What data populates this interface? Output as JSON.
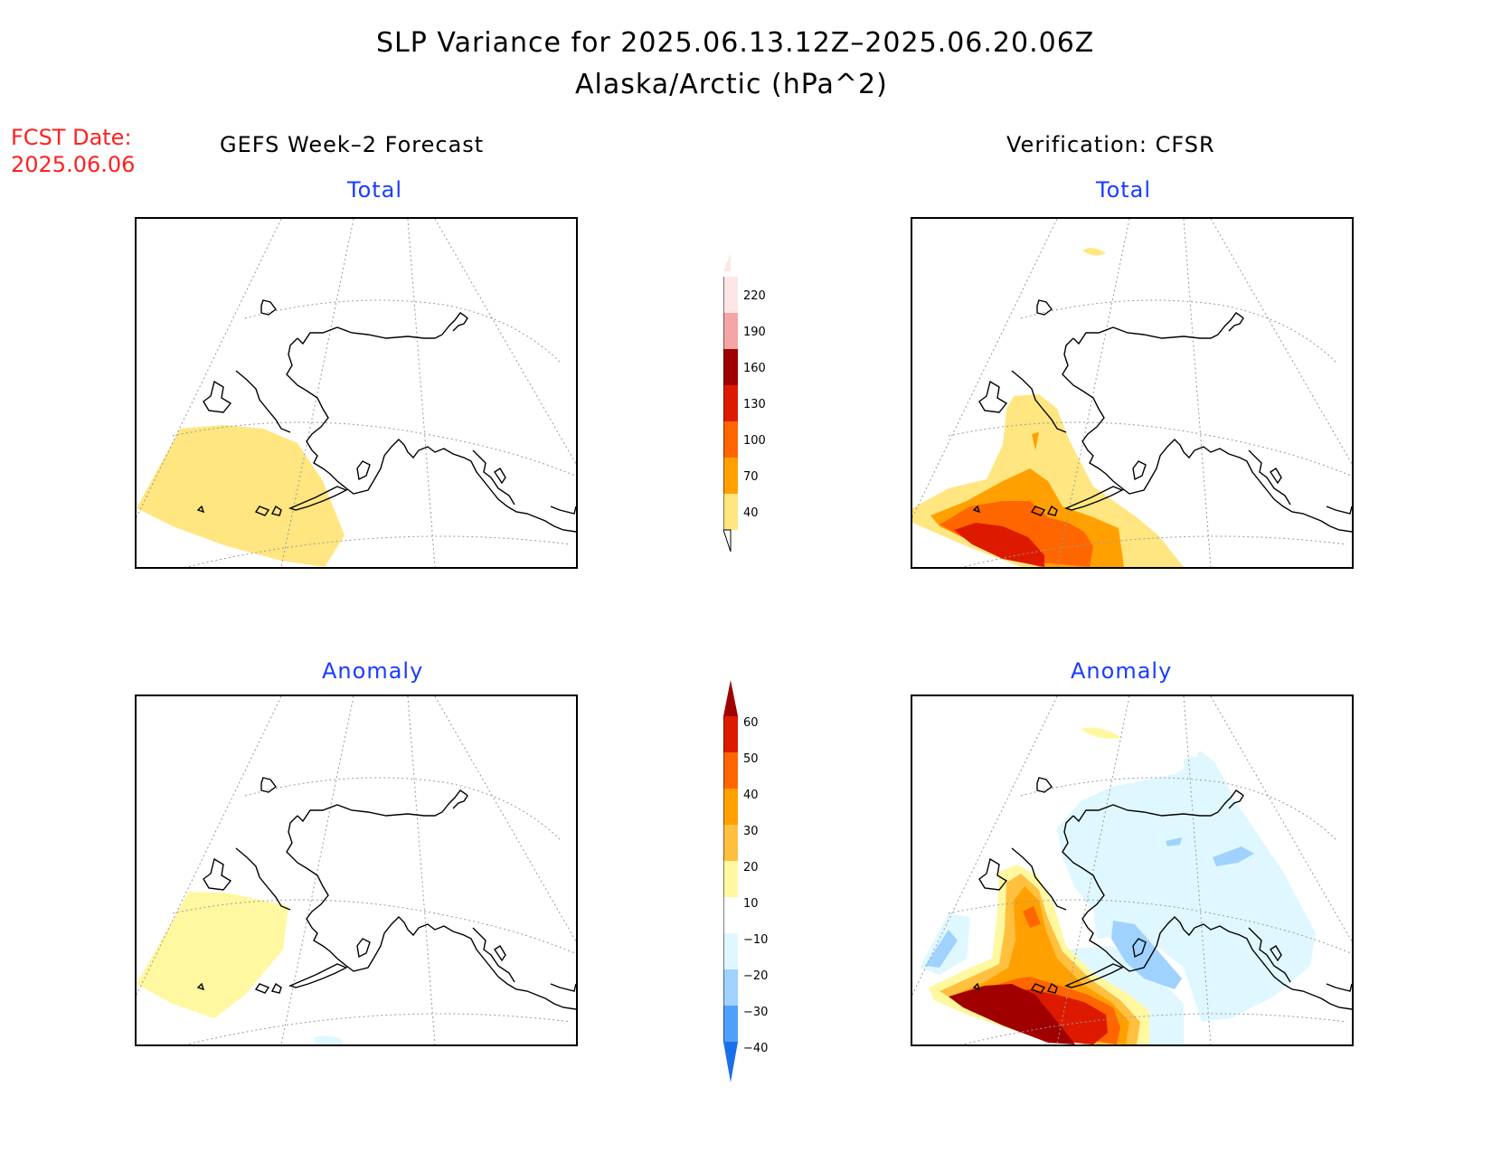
{
  "header": {
    "title_line1": "SLP Variance for 2025.06.13.12Z–2025.06.20.06Z",
    "title_line2": "Alaska/Arctic (hPa^2)",
    "fcst_date_label": "FCST Date:",
    "fcst_date_value": "2025.06.06"
  },
  "columns": {
    "left_title": "GEFS Week–2 Forecast",
    "right_title": "Verification: CFSR"
  },
  "panels": {
    "forecast_total": "Total",
    "verification_total": "Total",
    "forecast_anomaly": "Anomaly",
    "verification_anomaly": "Anomaly"
  },
  "colorbar_total": {
    "labels": [
      "220",
      "190",
      "160",
      "130",
      "100",
      "70",
      "40"
    ],
    "colors": [
      "#ffe6e6",
      "#f4a6a6",
      "#a00000",
      "#dd1a00",
      "#ff6600",
      "#ffa000",
      "#ffe680"
    ]
  },
  "colorbar_anomaly": {
    "labels": [
      "60",
      "50",
      "40",
      "30",
      "20",
      "10",
      "−10",
      "−20",
      "−30",
      "−40"
    ],
    "colors": [
      "#a00000",
      "#dd1a00",
      "#ff6600",
      "#ffa000",
      "#ffc040",
      "#fff8a0",
      "#ffffff",
      "#dff8ff",
      "#a0d2ff",
      "#50a0ff",
      "#1a70e8"
    ]
  }
}
